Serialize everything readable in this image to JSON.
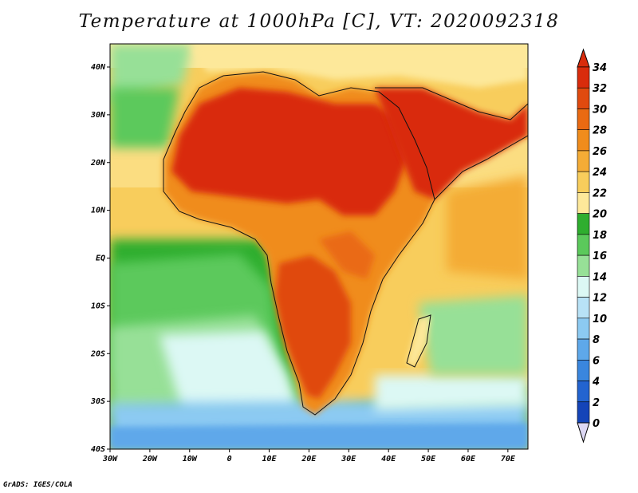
{
  "title": "Temperature at 1000hPa [C], VT: 2020092318",
  "credit": "GrADS: IGES/COLA",
  "axes": {
    "x_ticks": [
      "30W",
      "20W",
      "10W",
      "0",
      "10E",
      "20E",
      "30E",
      "40E",
      "50E",
      "60E",
      "70E"
    ],
    "y_ticks": [
      "40N",
      "30N",
      "20N",
      "10N",
      "EQ",
      "10S",
      "20S",
      "30S",
      "40S"
    ]
  },
  "colorbar": {
    "labels": [
      "34",
      "32",
      "30",
      "28",
      "26",
      "24",
      "22",
      "20",
      "18",
      "16",
      "14",
      "12",
      "10",
      "8",
      "6",
      "4",
      "2",
      "0"
    ],
    "colors": [
      "#d92c0c",
      "#e04a0f",
      "#ea6a12",
      "#f08c1c",
      "#f4ac36",
      "#f8cd5c",
      "#fde89a",
      "#2fae2f",
      "#5bc95b",
      "#97e097",
      "#dcf8f4",
      "#b8e2f6",
      "#8ccaf2",
      "#5ea8ea",
      "#3a86de",
      "#2364d0",
      "#1444b8",
      "#0b2278"
    ]
  },
  "map": {
    "region": "Africa",
    "lon_range": [
      -30,
      75
    ],
    "lat_range": [
      -40,
      45
    ],
    "variable": "Temperature at 1000hPa",
    "units": "C"
  }
}
